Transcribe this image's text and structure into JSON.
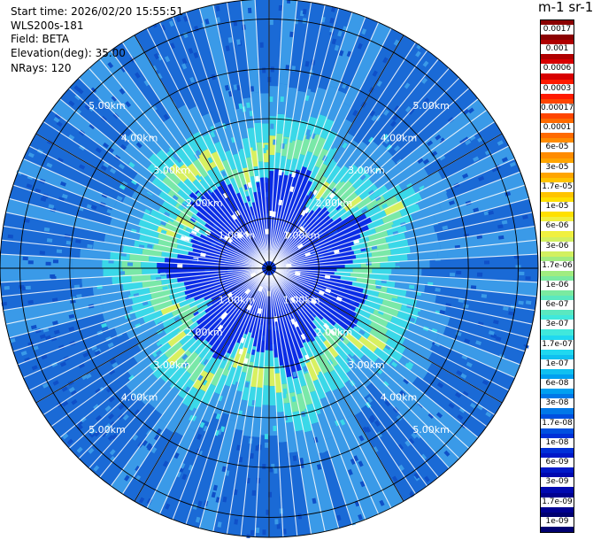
{
  "header": {
    "start_time": "Start time: 2026/02/20 15:55:51",
    "instrument": "WLS200s-181",
    "field": "Field: BETA",
    "elevation": "Elevation(deg): 35.00",
    "nrays": "NRays: 120"
  },
  "colorbar": {
    "title": "m-1 sr-1",
    "labels": [
      "0.0017",
      "0.001",
      "0.0006",
      "0.0003",
      "0.00017",
      "0.0001",
      "6e-05",
      "3e-05",
      "1.7e-05",
      "1e-05",
      "6e-06",
      "3e-06",
      "1.7e-06",
      "1e-06",
      "6e-07",
      "3e-07",
      "1.7e-07",
      "1e-07",
      "6e-08",
      "3e-08",
      "1.7e-08",
      "1e-08",
      "6e-09",
      "3e-09",
      "1.7e-09",
      "1e-09"
    ],
    "colors": [
      "#8b0000",
      "#b00000",
      "#d80000",
      "#ff1a00",
      "#ff4500",
      "#ff6a00",
      "#ff8c00",
      "#ffa500",
      "#ffc400",
      "#ffe000",
      "#f0f040",
      "#d2f060",
      "#a0ec80",
      "#7aeaa0",
      "#5ae8c0",
      "#40e8dc",
      "#20d8f0",
      "#10c0f0",
      "#00a0f0",
      "#0078e8",
      "#0050e0",
      "#0030d8",
      "#0018c8",
      "#0008b0",
      "#000090",
      "#000070"
    ]
  },
  "ppi": {
    "ring_labels": [
      "1.00km",
      "2.00km",
      "3.00km",
      "4.00km",
      "5.00km"
    ],
    "ring_km": [
      1,
      2,
      3,
      4,
      5
    ],
    "max_range_km": 5.4,
    "n_rays": 120,
    "colors": {
      "core": "#0a2ce6",
      "inner_speckle": "#1040f0",
      "ring_cyan": "#3ad8e8",
      "ring_green": "#7ae8a8",
      "ring_yellow": "#d8f060",
      "outer": "#1a6ad6",
      "outer_light": "#3a9ae8",
      "grid": "#000000",
      "gap": "#ffffff"
    }
  }
}
